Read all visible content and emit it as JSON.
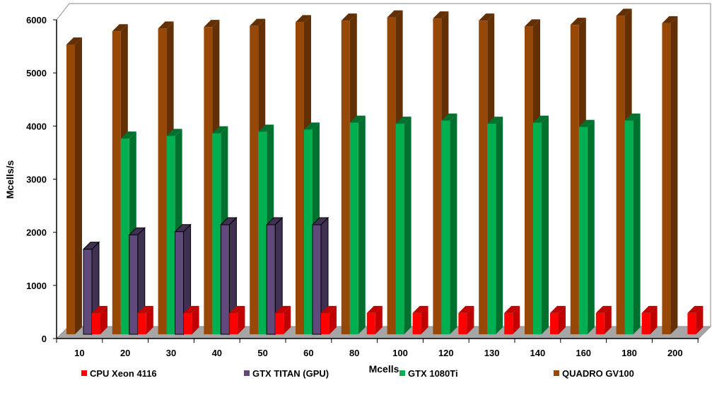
{
  "chart_data": {
    "type": "bar",
    "title": "",
    "xlabel": "Mcells",
    "ylabel": "Mcells/s",
    "ylim": [
      0,
      6000
    ],
    "yticks": [
      "0",
      "1000",
      "2000",
      "3000",
      "4000",
      "5000",
      "6000"
    ],
    "categories": [
      "10",
      "20",
      "30",
      "40",
      "50",
      "60",
      "80",
      "100",
      "120",
      "130",
      "140",
      "160",
      "180",
      "200"
    ],
    "series": [
      {
        "name": "QUADRO GV100",
        "color": "#974706",
        "side": "#632F04",
        "values": [
          5450,
          5700,
          5750,
          5780,
          5800,
          5870,
          5900,
          5960,
          5940,
          5900,
          5790,
          5820,
          5990,
          5850
        ]
      },
      {
        "name": "GTX 1080Ti",
        "color": "#00B050",
        "side": "#00702F",
        "values": [
          null,
          3680,
          3730,
          3780,
          3810,
          3850,
          3980,
          3960,
          4020,
          3960,
          3980,
          3900,
          4020,
          null
        ]
      },
      {
        "name": "GTX TITAN (GPU)",
        "color": "#604A7B",
        "side": "#3F3151",
        "values": [
          1600,
          1870,
          1930,
          2060,
          2060,
          2060,
          null,
          null,
          null,
          null,
          null,
          null,
          null,
          null
        ]
      },
      {
        "name": "CPU Xeon 4116",
        "color": "#FF0000",
        "side": "#C00000",
        "values": [
          400,
          400,
          400,
          400,
          400,
          400,
          400,
          400,
          400,
          400,
          400,
          400,
          400,
          400
        ]
      }
    ],
    "legend_order": [
      "CPU Xeon 4116",
      "GTX TITAN (GPU)",
      "GTX 1080Ti",
      "QUADRO GV100"
    ],
    "legend_position": "bottom",
    "grid": false
  }
}
